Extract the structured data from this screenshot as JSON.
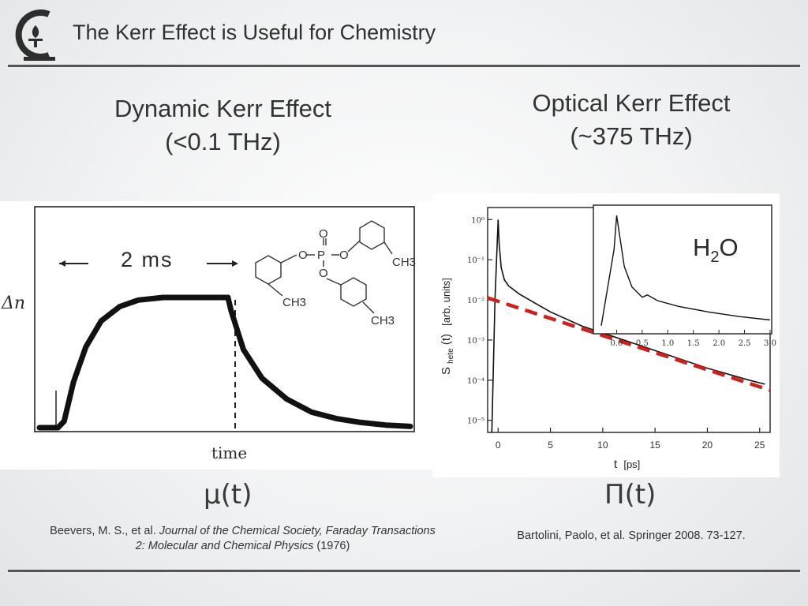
{
  "header": {
    "title": "The Kerr Effect is Useful for Chemistry"
  },
  "left_column": {
    "heading_line1": "Dynamic Kerr Effect",
    "heading_line2": "(<0.1 THz)",
    "math_label": "μ(t)",
    "reference_authors": "Beevers, M. S., et al. ",
    "reference_journal": "Journal of the Chemical Society, Faraday Transactions 2: Molecular and Chemical Physics",
    "reference_year": " (1976)"
  },
  "right_column": {
    "heading_line1": "Optical Kerr Effect",
    "heading_line2": "(~375 THz)",
    "math_label": "Π(t)",
    "reference": "Bartolini, Paolo, et al. Springer 2008. 73-127."
  },
  "chart_data": [
    {
      "type": "line",
      "title": "",
      "xlabel": "time",
      "ylabel": "Δn",
      "annotation": "2 ms",
      "molecule_labels": [
        "O",
        "P",
        "O",
        "O",
        "O",
        "CH3",
        "CH3",
        "CH3"
      ],
      "series": [
        {
          "name": "birefringence response",
          "x": [
            0,
            0.3,
            0.4,
            0.55,
            0.75,
            1.0,
            1.3,
            1.6,
            2.0,
            2.6,
            3.05,
            3.1,
            3.3,
            3.6,
            4.0,
            4.4,
            4.8,
            5.2,
            5.6,
            6.0
          ],
          "y": [
            0.0,
            0.0,
            0.05,
            0.35,
            0.62,
            0.82,
            0.93,
            0.98,
            1.0,
            1.0,
            1.0,
            0.9,
            0.6,
            0.38,
            0.22,
            0.12,
            0.07,
            0.04,
            0.02,
            0.01
          ]
        }
      ]
    },
    {
      "type": "line",
      "title": "",
      "xlabel": "t",
      "xunit": "[ps]",
      "ylabel_main": "S",
      "ylabel_sub": "hete",
      "ylabel_rest": "(t)",
      "yunit": "[arb. units]",
      "xticks": [
        "0",
        "5",
        "10",
        "15",
        "20",
        "25"
      ],
      "yscale": "log",
      "yticks": [
        "10⁰",
        "10⁻¹",
        "10⁻²",
        "10⁻³",
        "10⁻⁴",
        "10⁻⁵"
      ],
      "xlim": [
        -1,
        26
      ],
      "ylim_log10": [
        -5.3,
        0.3
      ],
      "series": [
        {
          "name": "OKE signal H2O",
          "x": [
            -0.6,
            -0.3,
            0.0,
            0.1,
            0.3,
            0.6,
            1.0,
            2.0,
            3.0,
            5.0,
            8.0,
            12.0,
            16.0,
            20.0,
            24.0,
            25.5
          ],
          "log10y": [
            -5.3,
            -2.0,
            0.0,
            -0.6,
            -1.2,
            -1.5,
            -1.65,
            -1.85,
            -2.0,
            -2.3,
            -2.65,
            -3.0,
            -3.35,
            -3.7,
            -4.0,
            -4.1
          ]
        },
        {
          "name": "exponential fit",
          "style": "dashed-red",
          "x": [
            -1.0,
            26.0
          ],
          "log10y": [
            -1.95,
            -4.25
          ]
        }
      ],
      "inset": {
        "label_main": "H",
        "label_sub": "2",
        "label_rest": "O",
        "xticks": [
          "0.0",
          "0.5",
          "1.0",
          "1.5",
          "2.0",
          "2.5",
          "3.0"
        ],
        "xlim": [
          -0.3,
          3.0
        ],
        "x": [
          -0.3,
          -0.05,
          0.0,
          0.05,
          0.15,
          0.3,
          0.5,
          0.6,
          0.8,
          1.2,
          1.8,
          2.4,
          3.0
        ],
        "y": [
          0.03,
          0.7,
          1.0,
          0.85,
          0.55,
          0.37,
          0.28,
          0.3,
          0.25,
          0.2,
          0.15,
          0.11,
          0.08
        ]
      }
    }
  ]
}
